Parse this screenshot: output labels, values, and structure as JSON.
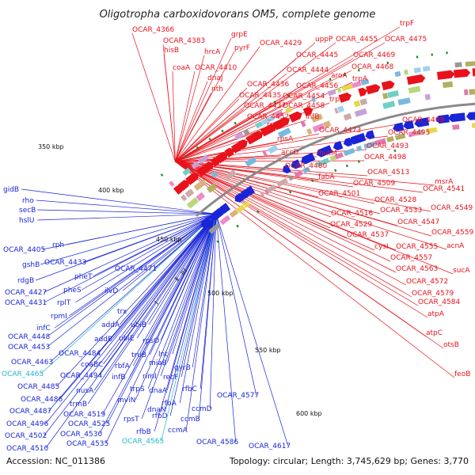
{
  "title": "Oligotropha carboxidovorans OM5, complete genome",
  "footer": {
    "accession": "Accession: NC_011386",
    "topology": "Topology: circular; Length: 3,745,629 bp; Genes: 3,770"
  },
  "colors": {
    "forward": "#e8121b",
    "reverse": "#1a25d8",
    "highlight": "#22b8cc",
    "backbone": "#8a8a8a",
    "tick": "#1e8a1e"
  },
  "kbp_labels": [
    "350 kbp",
    "400 kbp",
    "450 kbp",
    "500 kbp",
    "550 kbp",
    "600 kbp"
  ],
  "genes_top": [
    "OCAR_4366",
    "OCAR_4383",
    "hisB",
    "coaA",
    "grpE",
    "hrcA",
    "pyrF",
    "OCAR_4410",
    "dnaJ",
    "nth",
    "OCAR_4429",
    "uppP",
    "OCAR_4455",
    "OCAR_4475",
    "trpF",
    "OCAR_4445",
    "OCAR_4469",
    "OCAR_4444",
    "aroA",
    "OCAR_4468",
    "trpA",
    "OCAR_4436",
    "OCAR_4456",
    "OCAR_4435",
    "OCAR_4454",
    "trpB",
    "OCAR_4437",
    "OCAR_4458",
    "OCAR_4452",
    "ihfB",
    "rpoN",
    "OCAR_4499",
    "OCAR_4473",
    "OCAR_4495",
    "rpsA",
    "OCAR_4493",
    "accD",
    "mutM",
    "OCAR_4498",
    "OCAR_4480",
    "OCAR_4513",
    "fabA",
    "OCAR_4509",
    "msrA",
    "OCAR_4501",
    "OCAR_4528",
    "OCAR_4541",
    "OCAR_4516",
    "OCAR_4533",
    "OCAR_4549",
    "OCAR_4529",
    "OCAR_4547",
    "OCAR_4537",
    "OCAR_4559",
    "cysI",
    "OCAR_4555",
    "acnA",
    "OCAR_4557",
    "OCAR_4563",
    "sucA",
    "OCAR_4572",
    "OCAR_4579",
    "OCAR_4584",
    "atpA",
    "atpC",
    "otsB",
    "feoB"
  ],
  "genes_bottom": [
    "gidB",
    "rho",
    "secB",
    "hslU",
    "OCAR_4405",
    "rph",
    "gshB",
    "OCAR_4433",
    "OCAR_4471",
    "rdgB",
    "pheT",
    "OCAR_4427",
    "pheS",
    "ilvD",
    "OCAR_4431",
    "rplT",
    "rpmI",
    "infC",
    "trx",
    "OCAR_4448",
    "addA",
    "ubiB",
    "OCAR_4453",
    "addB",
    "ubiE",
    "rpsO",
    "OCAR_4484",
    "lnt",
    "OCAR_4463",
    "coaBC",
    "truB",
    "miaB",
    "OCAR_4465",
    "OCAR_4494",
    "rbfA",
    "infB",
    "rimI",
    "recF",
    "gyrB",
    "OCAR_4485",
    "nusA",
    "trpS",
    "dnaA",
    "rfbC",
    "OCAR_4486",
    "mviN",
    "rfbA",
    "OCAR_4487",
    "trmB",
    "dnaN",
    "OCAR_4577",
    "OCAR_4519",
    "rpsT",
    "rfbD",
    "ccmD",
    "OCAR_4496",
    "OCAR_4525",
    "ccmB",
    "OCAR_4502",
    "OCAR_4530",
    "rfbB",
    "ccmA",
    "OCAR_4565",
    "OCAR_4586",
    "OCAR_4535",
    "OCAR_4510",
    "OCAR_4617"
  ]
}
